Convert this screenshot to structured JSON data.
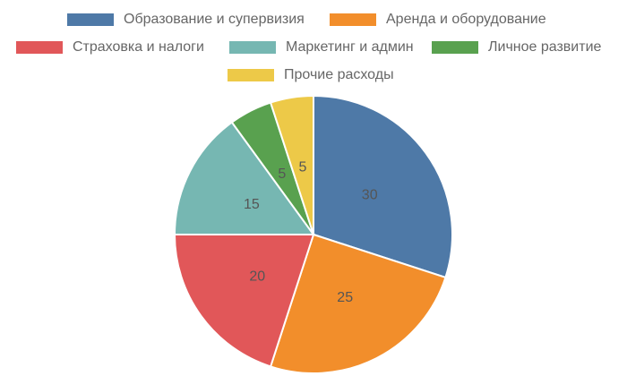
{
  "chart_data": {
    "type": "pie",
    "categories": [
      "Образование и супервизия",
      "Аренда и оборудование",
      "Страховка и налоги",
      "Маркетинг и админ",
      "Личное развитие",
      "Прочие расходы"
    ],
    "values": [
      30,
      25,
      20,
      15,
      5,
      5
    ],
    "colors": [
      "#4e79a7",
      "#f28e2b",
      "#e15759",
      "#76b7b2",
      "#59a14f",
      "#edc948"
    ],
    "title": "",
    "legend_position": "top"
  }
}
